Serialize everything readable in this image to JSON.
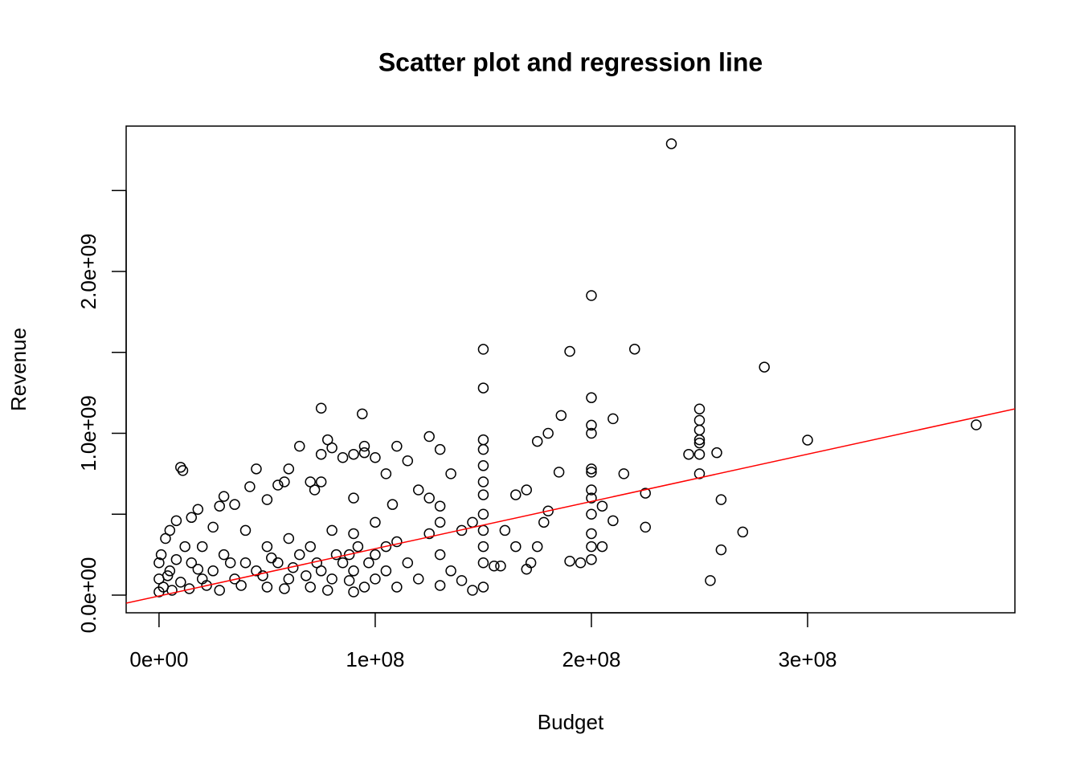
{
  "chart_data": {
    "type": "scatter",
    "title": "Scatter plot and regression line",
    "x_label": "Budget",
    "y_label": "Revenue",
    "xlim": [
      -15200000,
      395900000
    ],
    "ylim": [
      -109000000,
      2898000000
    ],
    "xticks": [
      {
        "value": 0,
        "label": "0e+00"
      },
      {
        "value": 100000000,
        "label": "1e+08"
      },
      {
        "value": 200000000,
        "label": "2e+08"
      },
      {
        "value": 300000000,
        "label": "3e+08"
      }
    ],
    "yticks": [
      {
        "value": 0,
        "label": "0.0e+00"
      },
      {
        "value": 500000000,
        "label": null
      },
      {
        "value": 1000000000,
        "label": "1.0e+09"
      },
      {
        "value": 1500000000,
        "label": null
      },
      {
        "value": 2000000000,
        "label": "2.0e+09"
      },
      {
        "value": 2500000000,
        "label": null
      }
    ],
    "color": "#000000",
    "x": [
      237000000.0,
      200000000.0,
      150000000.0,
      190000000.0,
      220000000.0,
      280000000.0,
      150000000.0,
      75000000.0,
      94000000.0,
      200000000.0,
      186000000.0,
      210000000.0,
      300000000.0,
      378000000.0,
      250000000.0,
      250000000.0,
      250000000.0,
      250000000.0,
      250000000.0,
      250000000.0,
      245000000.0,
      258000000.0,
      250000000.0,
      260000000.0,
      270000000.0,
      260000000.0,
      255000000.0,
      225000000.0,
      225000000.0,
      200000000.0,
      200000000.0,
      205000000.0,
      210000000.0,
      215000000.0,
      205000000.0,
      200000000.0,
      200000000.0,
      200000000.0,
      200000000.0,
      200000000.0,
      200000000.0,
      200000000.0,
      200000000.0,
      195000000.0,
      190000000.0,
      175000000.0,
      180000000.0,
      185000000.0,
      180000000.0,
      178000000.0,
      170000000.0,
      175000000.0,
      172000000.0,
      165000000.0,
      160000000.0,
      155000000.0,
      150000000.0,
      150000000.0,
      150000000.0,
      150000000.0,
      150000000.0,
      150000000.0,
      150000000.0,
      150000000.0,
      150000000.0,
      150000000.0,
      145000000.0,
      140000000.0,
      135000000.0,
      130000000.0,
      130000000.0,
      130000000.0,
      130000000.0,
      130000000.0,
      125000000.0,
      125000000.0,
      120000000.0,
      115000000.0,
      110000000.0,
      108000000.0,
      105000000.0,
      105000000.0,
      100000000.0,
      95000000.0,
      95000000.0,
      90000000.0,
      90000000.0,
      90000000.0,
      88000000.0,
      85000000.0,
      80000000.0,
      78000000.0,
      75000000.0,
      75000000.0,
      72000000.0,
      70000000.0,
      65000000.0,
      60000000.0,
      58000000.0,
      55000000.0,
      50000000.0,
      45000000.0,
      42000000.0,
      35000000.0,
      30000000.0,
      28000000.0,
      10000000.0,
      11000000.0,
      18000000.0,
      15000000.0,
      8000000.0,
      5000000.0,
      3000000.0,
      1000000.0,
      0,
      0,
      0,
      2000000.0,
      5000000.0,
      10000000.0,
      12000000.0,
      15000000.0,
      20000000.0,
      20000000.0,
      25000000.0,
      25000000.0,
      30000000.0,
      35000000.0,
      40000000.0,
      40000000.0,
      45000000.0,
      50000000.0,
      50000000.0,
      55000000.0,
      60000000.0,
      60000000.0,
      65000000.0,
      70000000.0,
      70000000.0,
      75000000.0,
      80000000.0,
      80000000.0,
      85000000.0,
      90000000.0,
      90000000.0,
      95000000.0,
      100000000.0,
      100000000.0,
      100000000.0,
      105000000.0,
      110000000.0,
      110000000.0,
      115000000.0,
      120000000.0,
      125000000.0,
      135000000.0,
      140000000.0,
      145000000.0,
      158000000.0,
      165000000.0,
      170000000.0,
      8000000.0,
      4000000.0,
      6000000.0,
      14000000.0,
      18000000.0,
      22000000.0,
      28000000.0,
      33000000.0,
      38000000.0,
      48000000.0,
      52000000.0,
      58000000.0,
      62000000.0,
      68000000.0,
      73000000.0,
      78000000.0,
      82000000.0,
      88000000.0,
      92000000.0,
      97000000.0
    ],
    "y": [
      2789000000.0,
      1851000000.0,
      1519000000.0,
      1506000000.0,
      1520000000.0,
      1409000000.0,
      1280000000.0,
      1155000000.0,
      1120000000.0,
      1220000000.0,
      1110000000.0,
      1090000000.0,
      958000000.0,
      1052000000.0,
      1150000000.0,
      1080000000.0,
      1020000000.0,
      960000000.0,
      940000000.0,
      870000000.0,
      870000000.0,
      880000000.0,
      750000000.0,
      590000000.0,
      390000000.0,
      280000000.0,
      90000000.0,
      630000000.0,
      420000000.0,
      1050000000.0,
      1000000000.0,
      550000000.0,
      460000000.0,
      750000000.0,
      300000000.0,
      780000000.0,
      760000000.0,
      650000000.0,
      600000000.0,
      500000000.0,
      380000000.0,
      300000000.0,
      220000000.0,
      200000000.0,
      210000000.0,
      950000000.0,
      1000000000.0,
      760000000.0,
      520000000.0,
      450000000.0,
      650000000.0,
      300000000.0,
      200000000.0,
      620000000.0,
      400000000.0,
      180000000.0,
      960000000.0,
      900000000.0,
      800000000.0,
      700000000.0,
      620000000.0,
      500000000.0,
      400000000.0,
      300000000.0,
      200000000.0,
      50000000.0,
      30000000.0,
      400000000.0,
      750000000.0,
      900000000.0,
      550000000.0,
      450000000.0,
      250000000.0,
      60000000.0,
      980000000.0,
      600000000.0,
      650000000.0,
      830000000.0,
      920000000.0,
      560000000.0,
      750000000.0,
      300000000.0,
      850000000.0,
      880000000.0,
      920000000.0,
      870000000.0,
      600000000.0,
      380000000.0,
      250000000.0,
      850000000.0,
      910000000.0,
      960000000.0,
      870000000.0,
      700000000.0,
      650000000.0,
      700000000.0,
      920000000.0,
      780000000.0,
      700000000.0,
      680000000.0,
      590000000.0,
      780000000.0,
      670000000.0,
      560000000.0,
      610000000.0,
      550000000.0,
      790000000.0,
      770000000.0,
      530000000.0,
      480000000.0,
      460000000.0,
      400000000.0,
      350000000.0,
      250000000.0,
      200000000.0,
      100000000.0,
      20000000.0,
      50000000.0,
      150000000.0,
      80000000.0,
      300000000.0,
      200000000.0,
      100000000.0,
      300000000.0,
      150000000.0,
      420000000.0,
      250000000.0,
      100000000.0,
      200000000.0,
      400000000.0,
      150000000.0,
      50000000.0,
      300000000.0,
      200000000.0,
      100000000.0,
      350000000.0,
      250000000.0,
      50000000.0,
      300000000.0,
      150000000.0,
      100000000.0,
      400000000.0,
      200000000.0,
      20000000.0,
      150000000.0,
      50000000.0,
      100000000.0,
      250000000.0,
      450000000.0,
      150000000.0,
      50000000.0,
      330000000.0,
      200000000.0,
      100000000.0,
      380000000.0,
      150000000.0,
      90000000.0,
      450000000.0,
      180000000.0,
      300000000.0,
      160000000.0,
      220000000.0,
      120000000.0,
      30000000.0,
      40000000.0,
      160000000.0,
      60000000.0,
      30000000.0,
      200000000.0,
      60000000.0,
      120000000.0,
      230000000.0,
      40000000.0,
      170000000.0,
      120000000.0,
      200000000.0,
      30000000.0,
      250000000.0,
      90000000.0,
      300000000.0,
      200000000.0
    ],
    "regression_line": {
      "color": "#ff0000",
      "x": [
        -15200000,
        395900000
      ],
      "y": [
        -49600000,
        1151000000
      ]
    }
  }
}
